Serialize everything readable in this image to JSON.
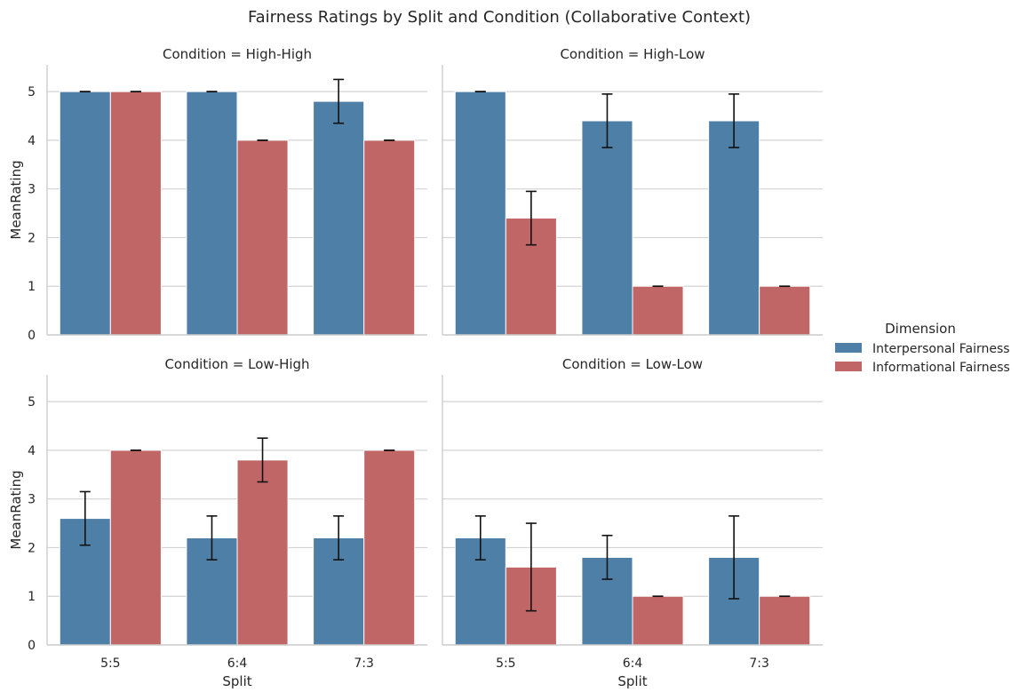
{
  "figure": {
    "title": "Fairness Ratings by Split and Condition (Collaborative Context)"
  },
  "legend": {
    "title": "Dimension",
    "placement": "right"
  },
  "colors": {
    "Interpersonal Fairness": "#4e7fa7",
    "Informational Fairness": "#c06666",
    "grid": "#d3d3d3",
    "axis": "#cccccc",
    "errorbar": "#111111"
  },
  "chart_data": [
    {
      "type": "bar",
      "title": "Condition = High-High",
      "xlabel": "",
      "ylabel": "MeanRating",
      "categories": [
        "5:5",
        "6:4",
        "7:3"
      ],
      "ylim": [
        0,
        5.55
      ],
      "yticks": [
        0,
        1,
        2,
        3,
        4,
        5
      ],
      "grid": true,
      "series": [
        {
          "name": "Interpersonal Fairness",
          "values": [
            5.0,
            5.0,
            4.8
          ],
          "err_low": [
            5.0,
            5.0,
            4.35
          ],
          "err_high": [
            5.0,
            5.0,
            5.25
          ]
        },
        {
          "name": "Informational Fairness",
          "values": [
            5.0,
            4.0,
            4.0
          ],
          "err_low": [
            5.0,
            4.0,
            4.0
          ],
          "err_high": [
            5.0,
            4.0,
            4.0
          ]
        }
      ]
    },
    {
      "type": "bar",
      "title": "Condition = High-Low",
      "xlabel": "",
      "ylabel": "",
      "categories": [
        "5:5",
        "6:4",
        "7:3"
      ],
      "ylim": [
        0,
        5.55
      ],
      "yticks": [
        0,
        1,
        2,
        3,
        4,
        5
      ],
      "grid": true,
      "series": [
        {
          "name": "Interpersonal Fairness",
          "values": [
            5.0,
            4.4,
            4.4
          ],
          "err_low": [
            5.0,
            3.85,
            3.85
          ],
          "err_high": [
            5.0,
            4.95,
            4.95
          ]
        },
        {
          "name": "Informational Fairness",
          "values": [
            2.4,
            1.0,
            1.0
          ],
          "err_low": [
            1.85,
            1.0,
            1.0
          ],
          "err_high": [
            2.95,
            1.0,
            1.0
          ]
        }
      ]
    },
    {
      "type": "bar",
      "title": "Condition = Low-High",
      "xlabel": "Split",
      "ylabel": "MeanRating",
      "categories": [
        "5:5",
        "6:4",
        "7:3"
      ],
      "ylim": [
        0,
        5.55
      ],
      "yticks": [
        0,
        1,
        2,
        3,
        4,
        5
      ],
      "grid": true,
      "series": [
        {
          "name": "Interpersonal Fairness",
          "values": [
            2.6,
            2.2,
            2.2
          ],
          "err_low": [
            2.05,
            1.75,
            1.75
          ],
          "err_high": [
            3.15,
            2.65,
            2.65
          ]
        },
        {
          "name": "Informational Fairness",
          "values": [
            4.0,
            3.8,
            4.0
          ],
          "err_low": [
            4.0,
            3.35,
            4.0
          ],
          "err_high": [
            4.0,
            4.25,
            4.0
          ]
        }
      ]
    },
    {
      "type": "bar",
      "title": "Condition = Low-Low",
      "xlabel": "Split",
      "ylabel": "",
      "categories": [
        "5:5",
        "6:4",
        "7:3"
      ],
      "ylim": [
        0,
        5.55
      ],
      "yticks": [
        0,
        1,
        2,
        3,
        4,
        5
      ],
      "grid": true,
      "series": [
        {
          "name": "Interpersonal Fairness",
          "values": [
            2.2,
            1.8,
            1.8
          ],
          "err_low": [
            1.75,
            1.35,
            0.95
          ],
          "err_high": [
            2.65,
            2.25,
            2.65
          ]
        },
        {
          "name": "Informational Fairness",
          "values": [
            1.6,
            1.0,
            1.0
          ],
          "err_low": [
            0.7,
            1.0,
            1.0
          ],
          "err_high": [
            2.5,
            1.0,
            1.0
          ]
        }
      ]
    }
  ]
}
